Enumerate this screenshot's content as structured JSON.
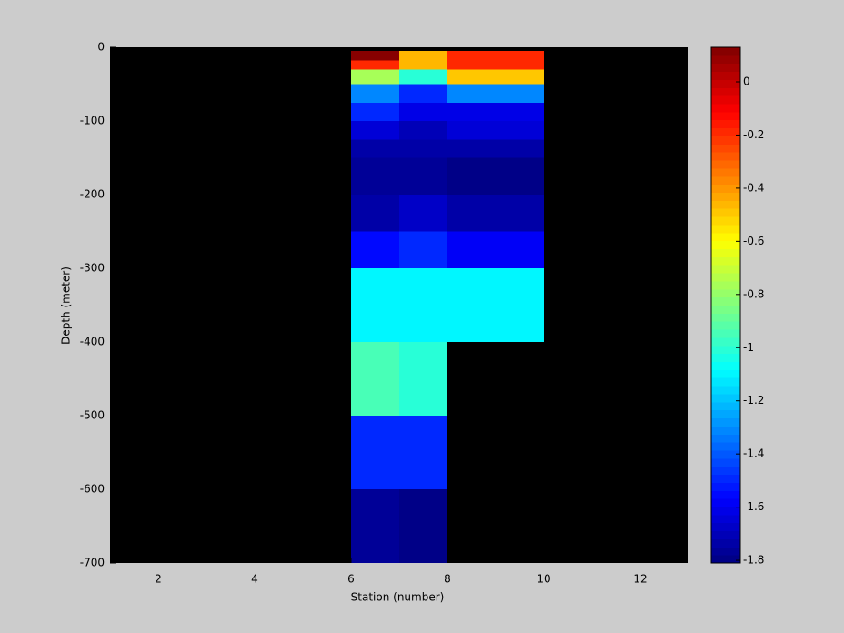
{
  "chart_data": {
    "type": "heatmap",
    "xlabel": "Station (number)",
    "ylabel": "Depth (meter)",
    "xlim": [
      1,
      13
    ],
    "xticks": [
      2,
      4,
      6,
      8,
      10,
      12
    ],
    "ylim": [
      -700,
      0
    ],
    "yticks": [
      0,
      -100,
      -200,
      -300,
      -400,
      -500,
      -600,
      -700
    ],
    "x": [
      6,
      7,
      8,
      10
    ],
    "y": [
      -5,
      -18,
      -30,
      -50,
      -75,
      -100,
      -125,
      -150,
      -200,
      -250,
      -300,
      -400,
      -500,
      -600,
      -700
    ],
    "z": [
      [
        0.1,
        -0.45,
        -0.2
      ],
      [
        -0.2,
        -0.45,
        -0.2
      ],
      [
        -0.75,
        -1.0,
        -0.5
      ],
      [
        -1.3,
        -1.5,
        -1.3
      ],
      [
        -1.5,
        -1.62,
        -1.6
      ],
      [
        -1.65,
        -1.7,
        -1.65
      ],
      [
        -1.72,
        -1.74,
        -1.72
      ],
      [
        -1.76,
        -1.76,
        -1.8
      ],
      [
        -1.73,
        -1.66,
        -1.72
      ],
      [
        -1.55,
        -1.48,
        -1.58
      ],
      [
        -1.1,
        -1.1,
        -1.1
      ],
      [
        -0.95,
        -1.02,
        null
      ],
      [
        -1.5,
        -1.5,
        null
      ],
      [
        -1.75,
        -1.78,
        null
      ]
    ],
    "colormap": "jet",
    "colormap_levels": 64,
    "background": "#000000",
    "clim": [
      -1.81,
      0.13
    ],
    "cticks": [
      0,
      -0.2,
      -0.4,
      -0.6,
      -0.8,
      -1,
      -1.2,
      -1.4,
      -1.6,
      -1.8
    ]
  }
}
